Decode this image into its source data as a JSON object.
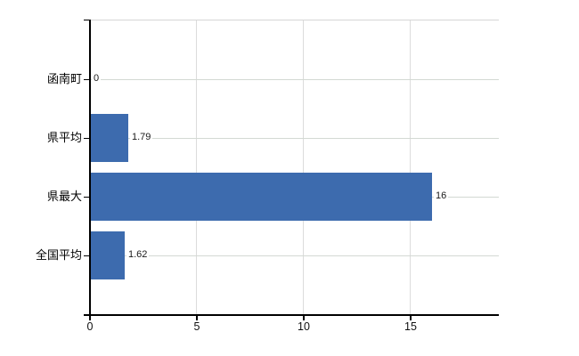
{
  "chart_data": {
    "type": "bar",
    "orientation": "horizontal",
    "title": "",
    "xlabel": "",
    "ylabel": "",
    "categories": [
      "函南町",
      "県平均",
      "県最大",
      "全国平均"
    ],
    "values": [
      0,
      1.79,
      16,
      1.62
    ],
    "data_labels": [
      "0",
      "1.79",
      "16",
      "1.62"
    ],
    "x_tick_labels": [
      "0",
      "5",
      "10",
      "15"
    ],
    "x_tick_values": [
      0,
      5,
      10,
      15
    ],
    "xlim": [
      0,
      19.17
    ],
    "grid": "vertical gridlines at x ticks; light horizontal line at each category center",
    "legend_position": "none"
  },
  "colors": {
    "bar": "#3d6bae",
    "axis": "#000000",
    "vertical_gridline": "#dcdcdc",
    "horizontal_gridline": "#d3d9d3",
    "top_border": "#d6d6d6",
    "background": "#ffffff",
    "label_text": "#000000"
  }
}
